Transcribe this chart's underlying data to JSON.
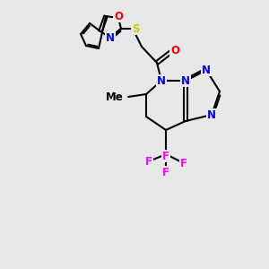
{
  "background_color": "#e8e8e8",
  "bond_color": "#000000",
  "bond_width": 1.5,
  "atom_colors": {
    "N": "#0000FF",
    "O": "#FF0000",
    "F": "#FF00FF",
    "S": "#CCCC00",
    "C": "#000000"
  },
  "font_size": 9,
  "bold_font_size": 9
}
